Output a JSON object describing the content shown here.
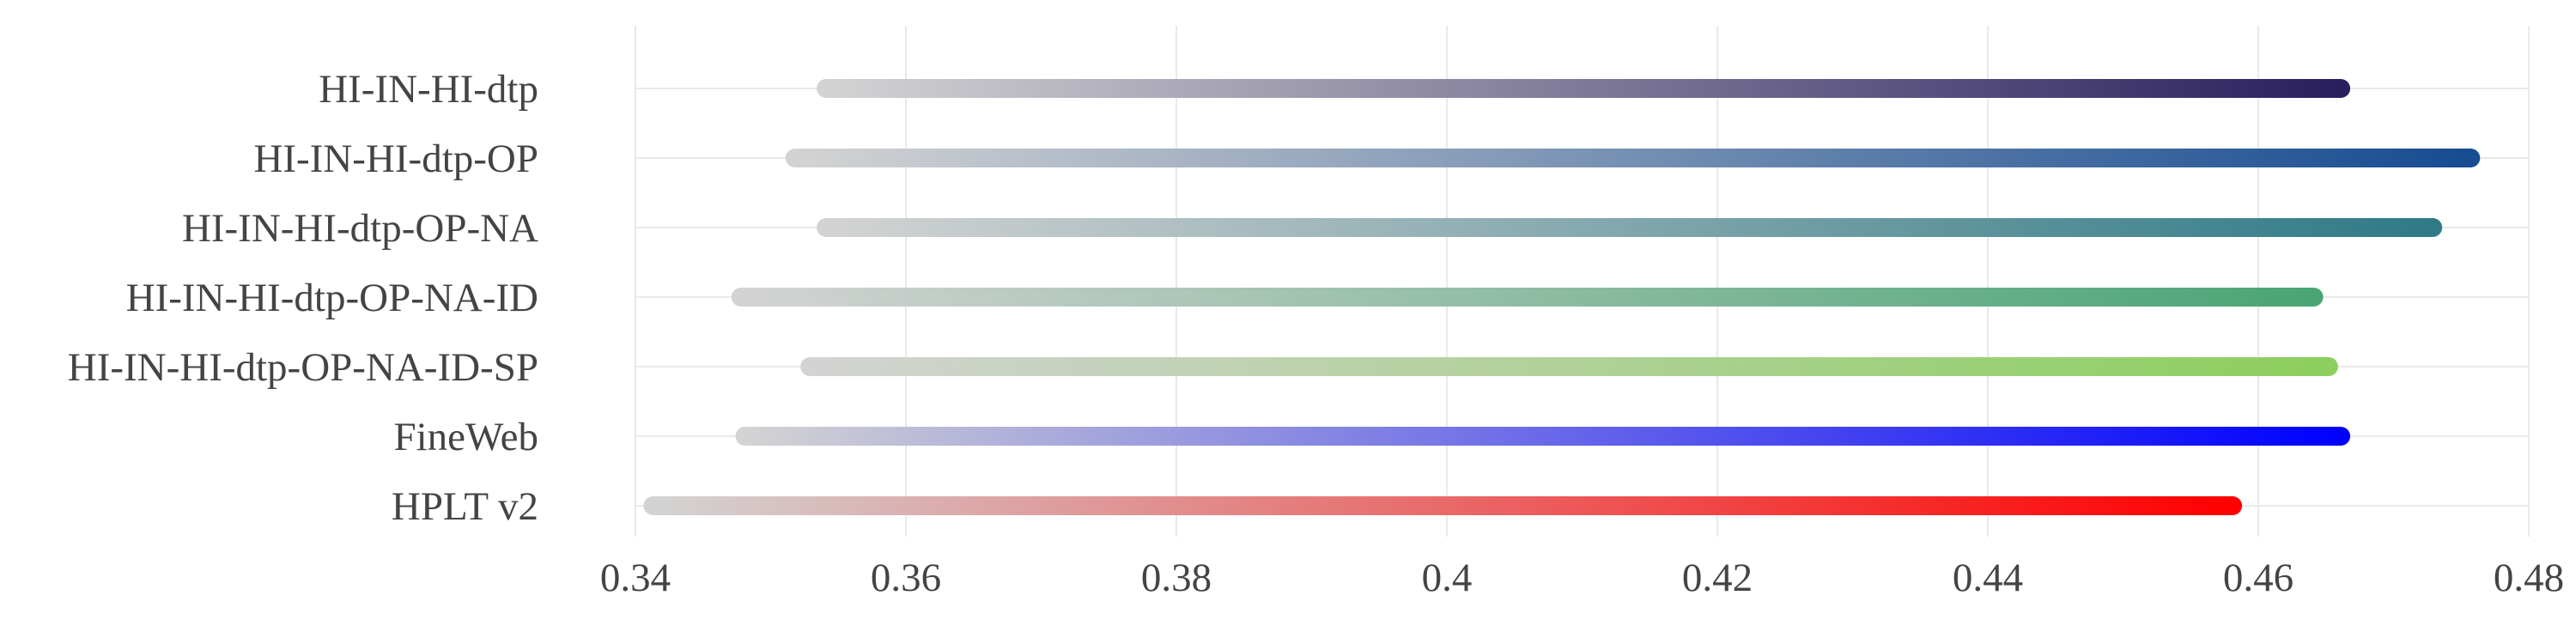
{
  "chart_data": {
    "type": "bar",
    "orientation": "horizontal",
    "style": "gradient range bars",
    "title": "",
    "xlabel": "",
    "ylabel": "",
    "xlim": [
      0.34,
      0.48
    ],
    "xticks": [
      "0.34",
      "0.36",
      "0.38",
      "0.4",
      "0.42",
      "0.44",
      "0.46",
      "0.48"
    ],
    "grid": true,
    "legend": "none",
    "series": [
      {
        "label": "HI-IN-HI-dtp",
        "start": 0.3541,
        "end": 0.4661,
        "color": "#2a1f5e"
      },
      {
        "label": "HI-IN-HI-dtp-OP",
        "start": 0.3518,
        "end": 0.4757,
        "color": "#174c92"
      },
      {
        "label": "HI-IN-HI-dtp-OP-NA",
        "start": 0.3541,
        "end": 0.4729,
        "color": "#2f7a86"
      },
      {
        "label": "HI-IN-HI-dtp-OP-NA-ID",
        "start": 0.3478,
        "end": 0.4641,
        "color": "#4aa574"
      },
      {
        "label": "HI-IN-HI-dtp-OP-NA-ID-SP",
        "start": 0.3529,
        "end": 0.4652,
        "color": "#8ccf5d"
      },
      {
        "label": "FineWeb",
        "start": 0.3481,
        "end": 0.4661,
        "color": "#0000ff"
      },
      {
        "label": "HPLT v2",
        "start": 0.3413,
        "end": 0.4581,
        "color": "#ff0000"
      }
    ],
    "start_color": "#d3d3d3"
  }
}
